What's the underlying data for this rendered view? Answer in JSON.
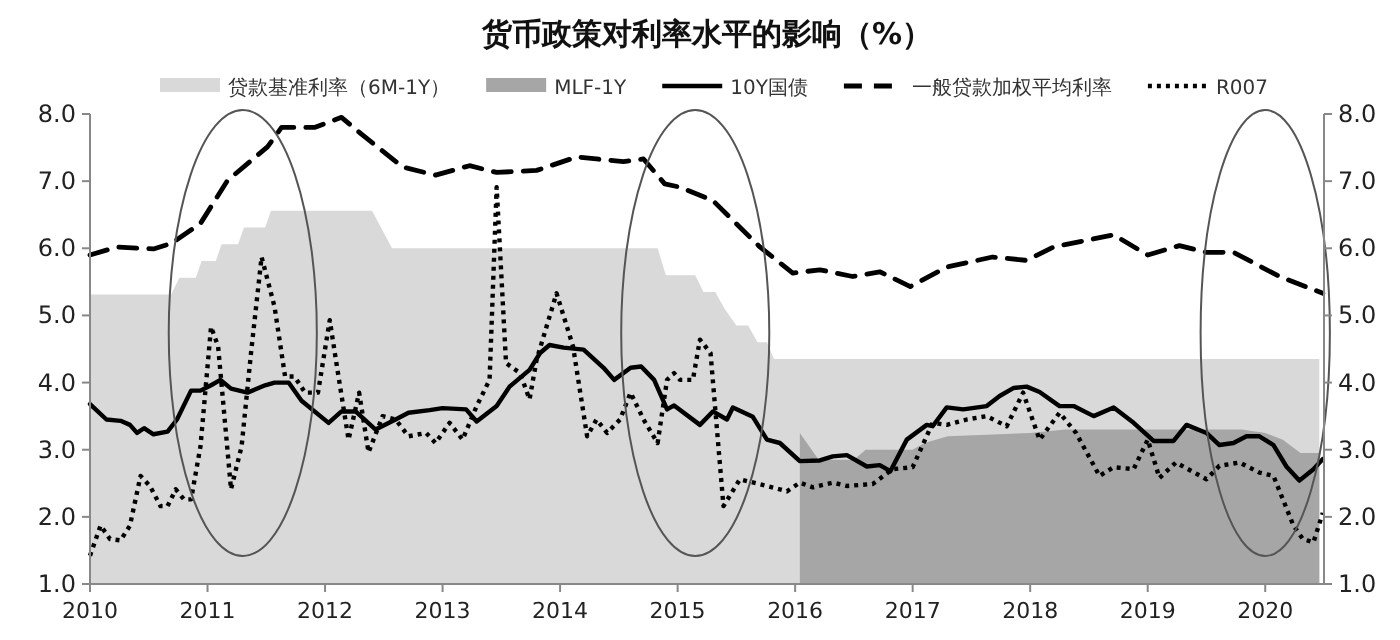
{
  "chart_data": {
    "type": "line",
    "title": "货币政策对利率水平的影响（%）",
    "xlim": [
      2010,
      2020.5
    ],
    "xticks": [
      2010,
      2011,
      2012,
      2013,
      2014,
      2015,
      2016,
      2017,
      2018,
      2019,
      2020
    ],
    "ylim": [
      1,
      8
    ],
    "yticks": [
      {
        "value": 1,
        "label": "1.0"
      },
      {
        "value": 2,
        "label": "2.0"
      },
      {
        "value": 3,
        "label": "3.0"
      },
      {
        "value": 4,
        "label": "4.0"
      },
      {
        "value": 5,
        "label": "5.0"
      },
      {
        "value": 6,
        "label": "6.0"
      },
      {
        "value": 7,
        "label": "7.0"
      },
      {
        "value": 8,
        "label": "8.0"
      }
    ],
    "y2lim": [
      1,
      8
    ],
    "y2ticks": [
      {
        "value": 1,
        "label": "1.0"
      },
      {
        "value": 2,
        "label": "2.0"
      },
      {
        "value": 3,
        "label": "3.0"
      },
      {
        "value": 4,
        "label": "4.0"
      },
      {
        "value": 5,
        "label": "5.0"
      },
      {
        "value": 6,
        "label": "6.0"
      },
      {
        "value": 7,
        "label": "7.0"
      },
      {
        "value": 8,
        "label": "8.0"
      }
    ],
    "legend": "top",
    "grid": false,
    "series": [
      {
        "name": "贷款基准利率（6M-1Y）",
        "type": "area",
        "color": "#d9d9d9",
        "x": [
          2010,
          2010.69,
          2010.76,
          2010.9,
          2010.95,
          2011.07,
          2011.12,
          2011.26,
          2011.31,
          2011.49,
          2011.54,
          2012.4,
          2012.57,
          2014.83,
          2014.9,
          2015.15,
          2015.22,
          2015.32,
          2015.4,
          2015.5,
          2015.6,
          2015.68,
          2015.76,
          2015.82,
          2020.46
        ],
        "values": [
          5.31,
          5.31,
          5.56,
          5.56,
          5.81,
          5.81,
          6.06,
          6.06,
          6.31,
          6.31,
          6.56,
          6.56,
          6.0,
          6.0,
          5.6,
          5.6,
          5.35,
          5.35,
          5.1,
          4.85,
          4.85,
          4.6,
          4.6,
          4.35,
          4.35
        ]
      },
      {
        "name": "MLF-1Y",
        "type": "area",
        "color": "#a6a6a6",
        "x": [
          2016.04,
          2016.2,
          2016.5,
          2016.6,
          2017.0,
          2017.1,
          2017.3,
          2018.0,
          2018.3,
          2019.8,
          2020.0,
          2020.15,
          2020.3,
          2020.46
        ],
        "values": [
          3.25,
          2.85,
          2.85,
          3.0,
          3.0,
          3.1,
          3.2,
          3.25,
          3.3,
          3.3,
          3.25,
          3.15,
          2.95,
          2.95
        ]
      },
      {
        "name": "10Y国债",
        "type": "line",
        "line_style": "solid",
        "color": "#000000",
        "x": [
          2010.0,
          2010.14,
          2010.26,
          2010.34,
          2010.4,
          2010.46,
          2010.54,
          2010.66,
          2010.74,
          2010.86,
          2010.94,
          2011.03,
          2011.11,
          2011.2,
          2011.34,
          2011.49,
          2011.57,
          2011.69,
          2011.8,
          2012.03,
          2012.14,
          2012.26,
          2012.43,
          2012.6,
          2012.71,
          2012.89,
          2013.0,
          2013.2,
          2013.29,
          2013.46,
          2013.57,
          2013.74,
          2013.83,
          2013.91,
          2014.03,
          2014.2,
          2014.37,
          2014.46,
          2014.6,
          2014.69,
          2014.8,
          2014.91,
          2014.97,
          2015.19,
          2015.3,
          2015.42,
          2015.47,
          2015.64,
          2015.76,
          2015.87,
          2016.04,
          2016.21,
          2016.32,
          2016.44,
          2016.61,
          2016.72,
          2016.81,
          2016.95,
          2017.12,
          2017.17,
          2017.29,
          2017.43,
          2017.63,
          2017.74,
          2017.86,
          2017.97,
          2018.08,
          2018.25,
          2018.37,
          2018.54,
          2018.71,
          2018.88,
          2019.05,
          2019.22,
          2019.33,
          2019.5,
          2019.61,
          2019.73,
          2019.84,
          2019.95,
          2020.07,
          2020.18,
          2020.29,
          2020.41,
          2020.49
        ],
        "values": [
          3.68,
          3.45,
          3.43,
          3.37,
          3.25,
          3.32,
          3.23,
          3.27,
          3.45,
          3.88,
          3.88,
          3.96,
          4.04,
          3.91,
          3.85,
          3.96,
          4.0,
          4.0,
          3.73,
          3.4,
          3.57,
          3.57,
          3.3,
          3.45,
          3.55,
          3.59,
          3.62,
          3.6,
          3.42,
          3.65,
          3.94,
          4.19,
          4.44,
          4.56,
          4.52,
          4.49,
          4.22,
          4.04,
          4.22,
          4.24,
          4.04,
          3.6,
          3.66,
          3.37,
          3.57,
          3.45,
          3.63,
          3.49,
          3.15,
          3.1,
          2.83,
          2.84,
          2.9,
          2.92,
          2.75,
          2.77,
          2.68,
          3.15,
          3.37,
          3.35,
          3.63,
          3.6,
          3.65,
          3.8,
          3.92,
          3.94,
          3.86,
          3.65,
          3.65,
          3.5,
          3.63,
          3.4,
          3.13,
          3.13,
          3.37,
          3.25,
          3.07,
          3.1,
          3.2,
          3.2,
          3.07,
          2.75,
          2.54,
          2.71,
          2.86
        ]
      },
      {
        "name": "一般贷款加权平均利率",
        "type": "line",
        "line_style": "dashed",
        "color": "#000000",
        "x": [
          2010.0,
          2010.23,
          2010.54,
          2010.69,
          2010.94,
          2011.17,
          2011.51,
          2011.63,
          2011.91,
          2012.14,
          2012.31,
          2012.66,
          2012.94,
          2013.23,
          2013.46,
          2013.8,
          2014.14,
          2014.54,
          2014.71,
          2014.89,
          2015.02,
          2015.3,
          2015.7,
          2015.98,
          2016.21,
          2016.49,
          2016.72,
          2016.98,
          2017.29,
          2017.68,
          2017.97,
          2018.2,
          2018.71,
          2019.0,
          2019.27,
          2019.5,
          2019.73,
          2020.12,
          2020.49
        ],
        "values": [
          5.9,
          6.02,
          5.99,
          6.07,
          6.37,
          7.01,
          7.51,
          7.8,
          7.8,
          7.95,
          7.7,
          7.21,
          7.09,
          7.23,
          7.13,
          7.16,
          7.36,
          7.29,
          7.33,
          6.96,
          6.91,
          6.71,
          6.02,
          5.63,
          5.68,
          5.58,
          5.65,
          5.43,
          5.72,
          5.87,
          5.82,
          6.02,
          6.2,
          5.9,
          6.04,
          5.94,
          5.94,
          5.58,
          5.33
        ]
      },
      {
        "name": "R007",
        "type": "line",
        "line_style": "dotted",
        "color": "#000000",
        "x": [
          2010.0,
          2010.09,
          2010.17,
          2010.26,
          2010.34,
          2010.43,
          2010.51,
          2010.6,
          2010.66,
          2010.73,
          2010.8,
          2010.86,
          2010.94,
          2011.03,
          2011.09,
          2011.2,
          2011.29,
          2011.37,
          2011.46,
          2011.57,
          2011.66,
          2011.74,
          2011.83,
          2011.94,
          2012.04,
          2012.11,
          2012.2,
          2012.29,
          2012.37,
          2012.49,
          2012.6,
          2012.71,
          2012.86,
          2012.94,
          2013.06,
          2013.17,
          2013.29,
          2013.4,
          2013.46,
          2013.54,
          2013.66,
          2013.74,
          2013.8,
          2013.97,
          2014.11,
          2014.23,
          2014.31,
          2014.4,
          2014.51,
          2014.6,
          2014.71,
          2014.83,
          2014.91,
          2014.97,
          2015.02,
          2015.13,
          2015.19,
          2015.28,
          2015.39,
          2015.53,
          2015.76,
          2015.93,
          2016.04,
          2016.15,
          2016.32,
          2016.44,
          2016.66,
          2016.83,
          2017.0,
          2017.17,
          2017.29,
          2017.46,
          2017.63,
          2017.8,
          2017.94,
          2018.08,
          2018.25,
          2018.39,
          2018.59,
          2018.71,
          2018.88,
          2019.0,
          2019.1,
          2019.24,
          2019.5,
          2019.61,
          2019.78,
          2019.95,
          2020.07,
          2020.24,
          2020.32,
          2020.41,
          2020.49
        ],
        "values": [
          1.42,
          1.87,
          1.67,
          1.65,
          1.87,
          2.61,
          2.46,
          2.16,
          2.16,
          2.41,
          2.26,
          2.26,
          3.05,
          4.83,
          4.54,
          2.41,
          3.05,
          4.44,
          5.87,
          5.13,
          4.09,
          4.09,
          3.85,
          3.85,
          4.93,
          4.14,
          3.15,
          3.85,
          2.96,
          3.5,
          3.45,
          3.2,
          3.25,
          3.1,
          3.4,
          3.15,
          3.65,
          4.04,
          6.91,
          4.29,
          4.14,
          3.75,
          4.34,
          5.33,
          4.54,
          3.2,
          3.45,
          3.25,
          3.45,
          3.85,
          3.45,
          3.1,
          4.04,
          4.14,
          4.04,
          4.04,
          4.64,
          4.44,
          2.16,
          2.56,
          2.46,
          2.38,
          2.51,
          2.44,
          2.51,
          2.46,
          2.49,
          2.71,
          2.74,
          3.4,
          3.37,
          3.45,
          3.5,
          3.35,
          3.85,
          3.15,
          3.55,
          3.25,
          2.61,
          2.74,
          2.71,
          3.15,
          2.58,
          2.81,
          2.56,
          2.76,
          2.81,
          2.66,
          2.61,
          1.87,
          1.67,
          1.62,
          2.06
        ]
      }
    ]
  }
}
